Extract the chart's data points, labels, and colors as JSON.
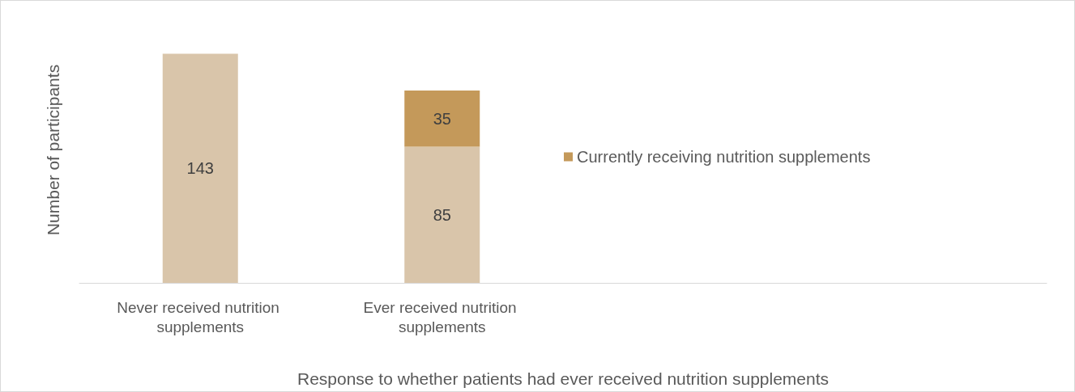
{
  "chart_data": {
    "type": "bar",
    "stacked": true,
    "xlabel": "Response to whether patients had ever received nutrition supplements",
    "ylabel": "Number of participants",
    "categories": [
      "Never received nutrition supplements",
      "Ever received nutrition supplements",
      null,
      null
    ],
    "series": [
      {
        "color": "#d9c5aa",
        "values": [
          143,
          85,
          null,
          null
        ]
      },
      {
        "name": "Currently receiving nutrition supplements",
        "color": "#c4995a",
        "values": [
          null,
          35,
          null,
          null
        ]
      }
    ],
    "data_labels": true,
    "legend": "right",
    "tick_labels": "x",
    "grid": false
  }
}
